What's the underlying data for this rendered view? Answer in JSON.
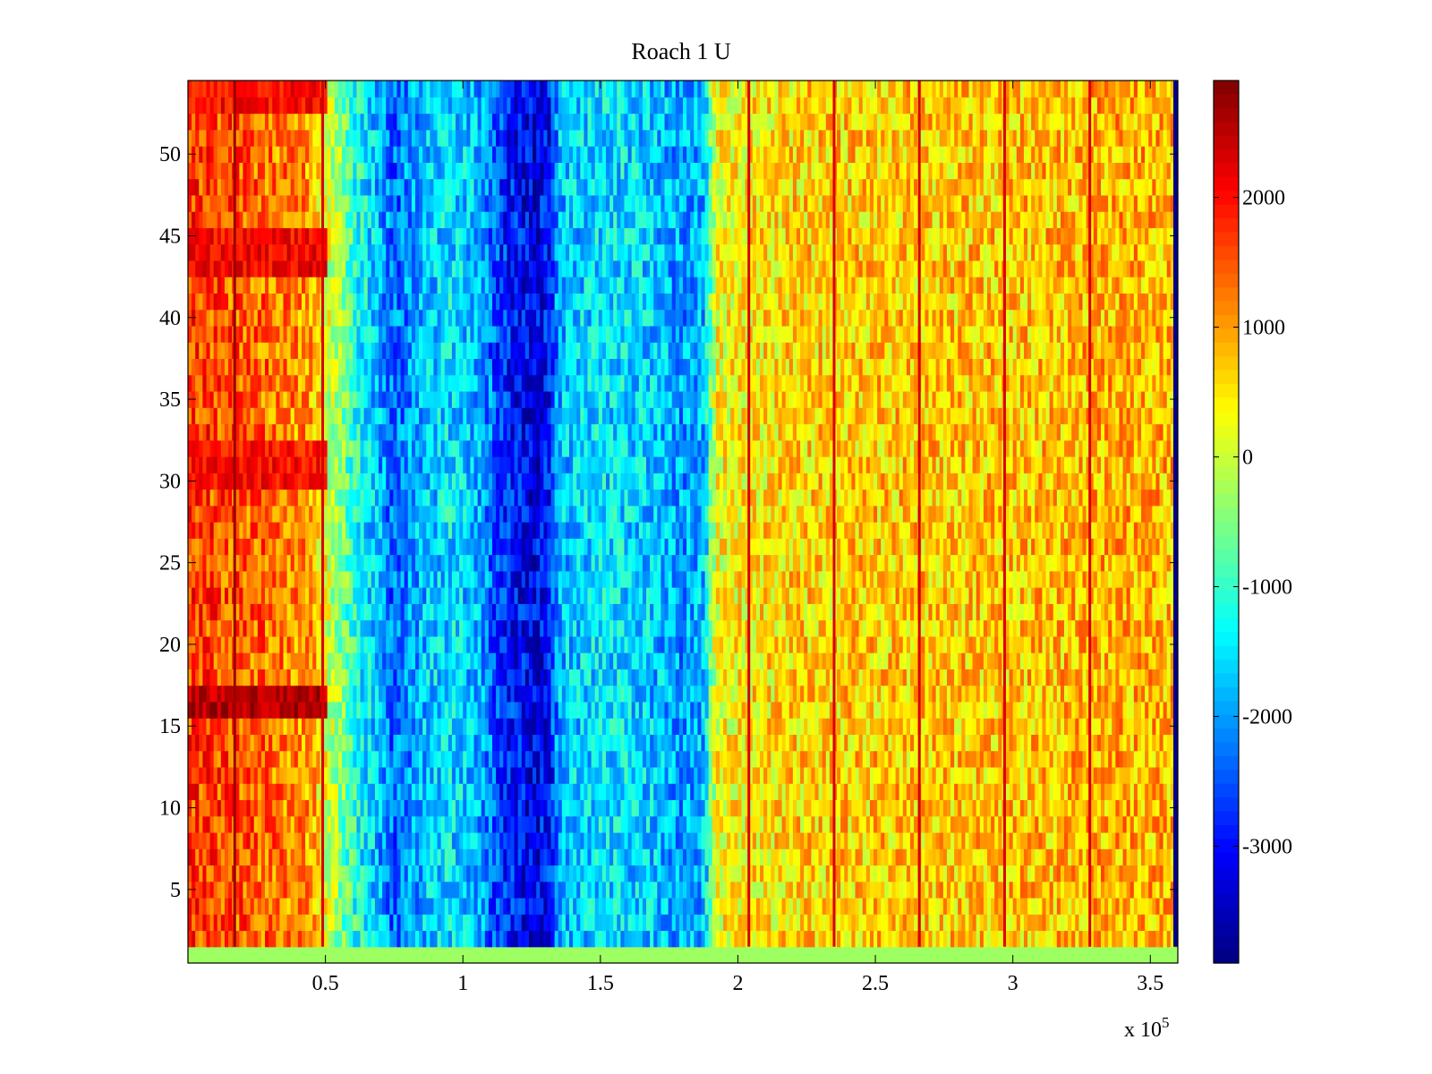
{
  "chart_data": {
    "type": "heatmap",
    "title": "Roach 1 U",
    "xlabel": "",
    "ylabel": "",
    "x_exponent_label": "x 10",
    "x_exponent_power": "5",
    "xlim": [
      0,
      3.6
    ],
    "ylim": [
      0.5,
      54.5
    ],
    "x_ticks": [
      {
        "value": 0.5,
        "label": "0.5"
      },
      {
        "value": 1,
        "label": "1"
      },
      {
        "value": 1.5,
        "label": "1.5"
      },
      {
        "value": 2,
        "label": "2"
      },
      {
        "value": 2.5,
        "label": "2.5"
      },
      {
        "value": 3,
        "label": "3"
      },
      {
        "value": 3.5,
        "label": "3.5"
      }
    ],
    "y_ticks": [
      {
        "value": 5,
        "label": "5"
      },
      {
        "value": 10,
        "label": "10"
      },
      {
        "value": 15,
        "label": "15"
      },
      {
        "value": 20,
        "label": "20"
      },
      {
        "value": 25,
        "label": "25"
      },
      {
        "value": 30,
        "label": "30"
      },
      {
        "value": 35,
        "label": "35"
      },
      {
        "value": 40,
        "label": "40"
      },
      {
        "value": 45,
        "label": "45"
      },
      {
        "value": 50,
        "label": "50"
      }
    ],
    "grid": false,
    "colormap": "jet",
    "colorbar": {
      "position": "right",
      "clim": [
        -3900,
        2900
      ],
      "ticks": [
        {
          "value": 2000,
          "label": "2000"
        },
        {
          "value": 1000,
          "label": "1000"
        },
        {
          "value": 0,
          "label": "0"
        },
        {
          "value": -1000,
          "label": "-1000"
        },
        {
          "value": -2000,
          "label": "-2000"
        },
        {
          "value": -3000,
          "label": "-3000"
        }
      ]
    },
    "rows": {
      "first": 1,
      "last": 54,
      "count": 54
    },
    "bottom_row_value": -300,
    "column_profile": [
      {
        "x": 0.0,
        "value": 1700
      },
      {
        "x": 0.15,
        "value": 1500
      },
      {
        "x": 0.3,
        "value": 1300
      },
      {
        "x": 0.45,
        "value": 1000
      },
      {
        "x": 0.5,
        "value": 200
      },
      {
        "x": 0.6,
        "value": -1000
      },
      {
        "x": 0.75,
        "value": -2400
      },
      {
        "x": 0.85,
        "value": -1800
      },
      {
        "x": 0.95,
        "value": -1500
      },
      {
        "x": 1.05,
        "value": -1800
      },
      {
        "x": 1.15,
        "value": -2800
      },
      {
        "x": 1.25,
        "value": -3200
      },
      {
        "x": 1.32,
        "value": -2900
      },
      {
        "x": 1.35,
        "value": -1800
      },
      {
        "x": 1.5,
        "value": -1500
      },
      {
        "x": 1.65,
        "value": -1600
      },
      {
        "x": 1.8,
        "value": -2000
      },
      {
        "x": 1.88,
        "value": -1800
      },
      {
        "x": 1.92,
        "value": 300
      },
      {
        "x": 2.2,
        "value": 600
      },
      {
        "x": 2.6,
        "value": 700
      },
      {
        "x": 3.0,
        "value": 700
      },
      {
        "x": 3.4,
        "value": 900
      },
      {
        "x": 3.58,
        "value": 800
      }
    ],
    "row_highlights": [
      {
        "row": 16,
        "value": 2600
      },
      {
        "row": 17,
        "value": 2500
      },
      {
        "row": 30,
        "value": 2000
      },
      {
        "row": 31,
        "value": 2000
      },
      {
        "row": 32,
        "value": 1900
      },
      {
        "row": 43,
        "value": 2100
      },
      {
        "row": 44,
        "value": 2100
      },
      {
        "row": 45,
        "value": 2000
      },
      {
        "row": 53,
        "value": 2000
      },
      {
        "row": 54,
        "value": 2000
      }
    ],
    "vertical_streaks": [
      {
        "x": 0.17,
        "value": 2700
      },
      {
        "x": 0.49,
        "value": 2300
      },
      {
        "x": 2.04,
        "value": 2300
      },
      {
        "x": 2.35,
        "value": 2300
      },
      {
        "x": 2.66,
        "value": 2300
      },
      {
        "x": 2.97,
        "value": 2300
      },
      {
        "x": 3.28,
        "value": 2300
      }
    ],
    "right_edge_column_value": -3800
  }
}
